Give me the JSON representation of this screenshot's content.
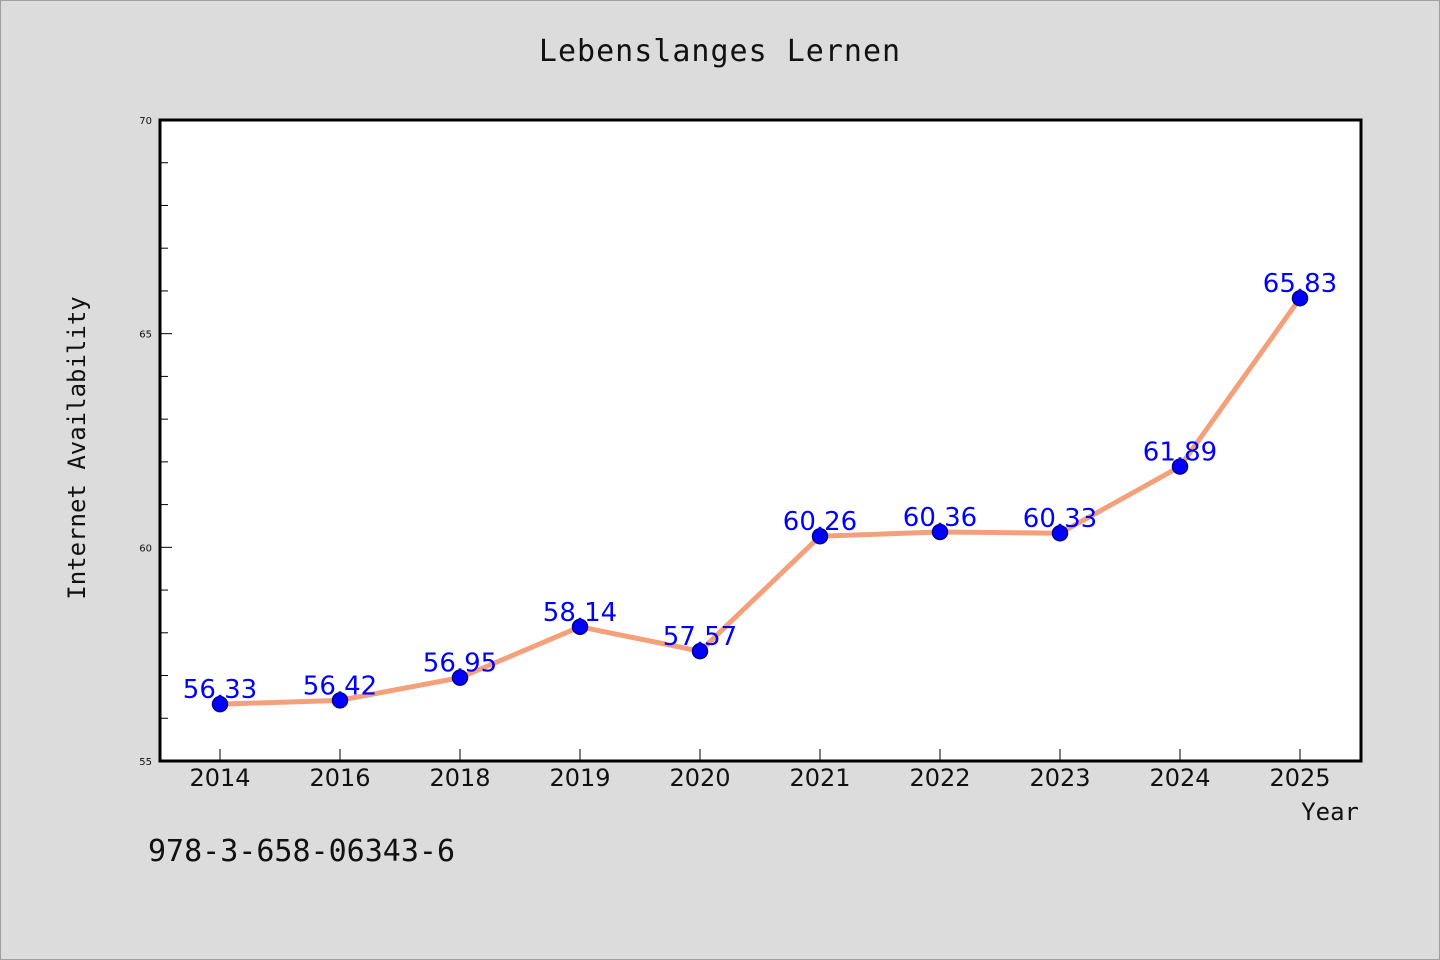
{
  "chart_data": {
    "type": "line",
    "title": "Lebenslanges Lernen",
    "xlabel": "Year",
    "ylabel": "Internet Availability",
    "categories": [
      "2014",
      "2016",
      "2018",
      "2019",
      "2020",
      "2021",
      "2022",
      "2023",
      "2024",
      "2025"
    ],
    "series": [
      {
        "values": [
          56.33,
          56.42,
          56.95,
          58.14,
          57.57,
          60.26,
          60.36,
          60.33,
          61.89,
          65.83
        ]
      }
    ],
    "data_labels": [
      "56.33",
      "56.42",
      "56.95",
      "58.14",
      "57.57",
      "60.26",
      "60.36",
      "60.33",
      "61.89",
      "65.83"
    ],
    "ylim": [
      55,
      70
    ],
    "yticks": [
      55,
      60,
      65,
      70
    ],
    "grid": false,
    "colors": {
      "line": "#f4a07a",
      "marker": "#0000ff",
      "marker_stroke": "#00008b",
      "label": "#0000ff",
      "background": "#dcdcdc",
      "plot_background": "#ffffff"
    }
  },
  "footer": {
    "isbn": "978-3-658-06343-6"
  }
}
